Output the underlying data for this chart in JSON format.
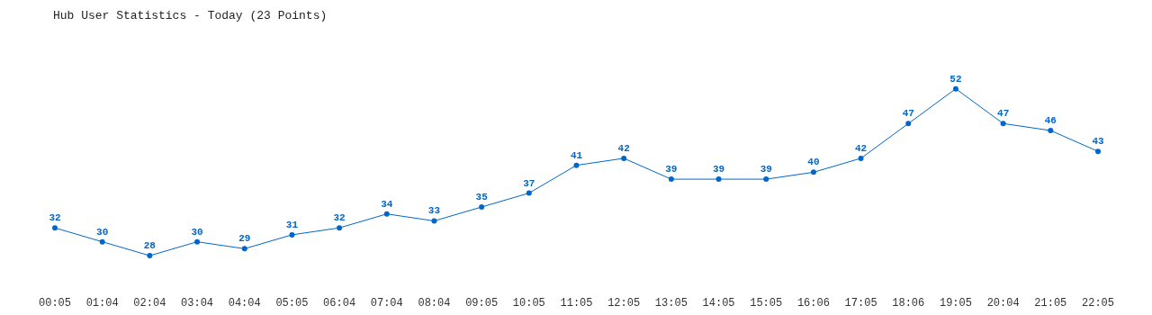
{
  "chart_data": {
    "type": "line",
    "title": "Hub User Statistics - Today (23 Points)",
    "categories": [
      "00:05",
      "01:04",
      "02:04",
      "03:04",
      "04:04",
      "05:05",
      "06:04",
      "07:04",
      "08:04",
      "09:05",
      "10:05",
      "11:05",
      "12:05",
      "13:05",
      "14:05",
      "15:05",
      "16:06",
      "17:05",
      "18:06",
      "19:05",
      "20:04",
      "21:05",
      "22:05"
    ],
    "series": [
      {
        "color": "#0066cc",
        "values": [
          32,
          30,
          28,
          30,
          29,
          31,
          32,
          34,
          33,
          35,
          37,
          41,
          42,
          39,
          39,
          39,
          40,
          42,
          47,
          52,
          47,
          46,
          43
        ]
      }
    ],
    "data_labels": true,
    "grid": false,
    "legend": false,
    "marker": "circle",
    "line_style": "solid",
    "tick_labels": "x"
  }
}
